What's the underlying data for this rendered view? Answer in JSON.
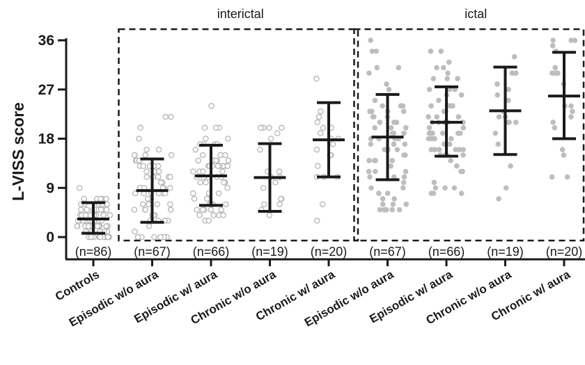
{
  "chart_data": {
    "type": "scatter",
    "ylabel": "L-VISS score",
    "ylim": [
      -2,
      37
    ],
    "yticks": [
      0,
      9,
      18,
      27,
      36
    ],
    "groups": [
      {
        "title": "interictal",
        "first": 1,
        "last": 4
      },
      {
        "title": "ictal",
        "first": 5,
        "last": 8
      }
    ],
    "categories": [
      {
        "name": "Controls",
        "n": "(n=86)",
        "mean": 3.3,
        "sd_low": 0.7,
        "sd_high": 6.3,
        "hollow": true,
        "spread": 24,
        "ymin": 0,
        "ymax": 12
      },
      {
        "name": "Episodic w/o aura",
        "n": "(n=67)",
        "mean": 8.5,
        "sd_low": 2.7,
        "sd_high": 14.3,
        "hollow": true,
        "spread": 28,
        "ymin": 0,
        "ymax": 22
      },
      {
        "name": "Episodic w/ aura",
        "n": "(n=66)",
        "mean": 11.2,
        "sd_low": 5.8,
        "sd_high": 16.8,
        "hollow": true,
        "spread": 26,
        "ymin": 3,
        "ymax": 24
      },
      {
        "name": "Chronic w/o aura",
        "n": "(n=19)",
        "mean": 10.9,
        "sd_low": 4.7,
        "sd_high": 17.1,
        "hollow": true,
        "spread": 18,
        "ymin": 0,
        "ymax": 20
      },
      {
        "name": "Chronic w/ aura",
        "n": "(n=20)",
        "mean": 17.8,
        "sd_low": 11,
        "sd_high": 24.6,
        "hollow": true,
        "spread": 18,
        "ymin": 2,
        "ymax": 29
      },
      {
        "name": "Episodic w/o aura",
        "n": "(n=67)",
        "mean": 18.3,
        "sd_low": 10.5,
        "sd_high": 26.1,
        "hollow": false,
        "spread": 28,
        "ymin": 5,
        "ymax": 36
      },
      {
        "name": "Episodic w/ aura",
        "n": "(n=66)",
        "mean": 21,
        "sd_low": 14.8,
        "sd_high": 27.5,
        "hollow": false,
        "spread": 26,
        "ymin": 8,
        "ymax": 36
      },
      {
        "name": "Chronic w/o aura",
        "n": "(n=19)",
        "mean": 23.1,
        "sd_low": 15.1,
        "sd_high": 31.1,
        "hollow": false,
        "spread": 18,
        "ymin": 7,
        "ymax": 36
      },
      {
        "name": "Chronic w/ aura",
        "n": "(n=20)",
        "mean": 25.8,
        "sd_low": 18,
        "sd_high": 33.8,
        "hollow": false,
        "spread": 18,
        "ymin": 10,
        "ymax": 36
      }
    ]
  }
}
